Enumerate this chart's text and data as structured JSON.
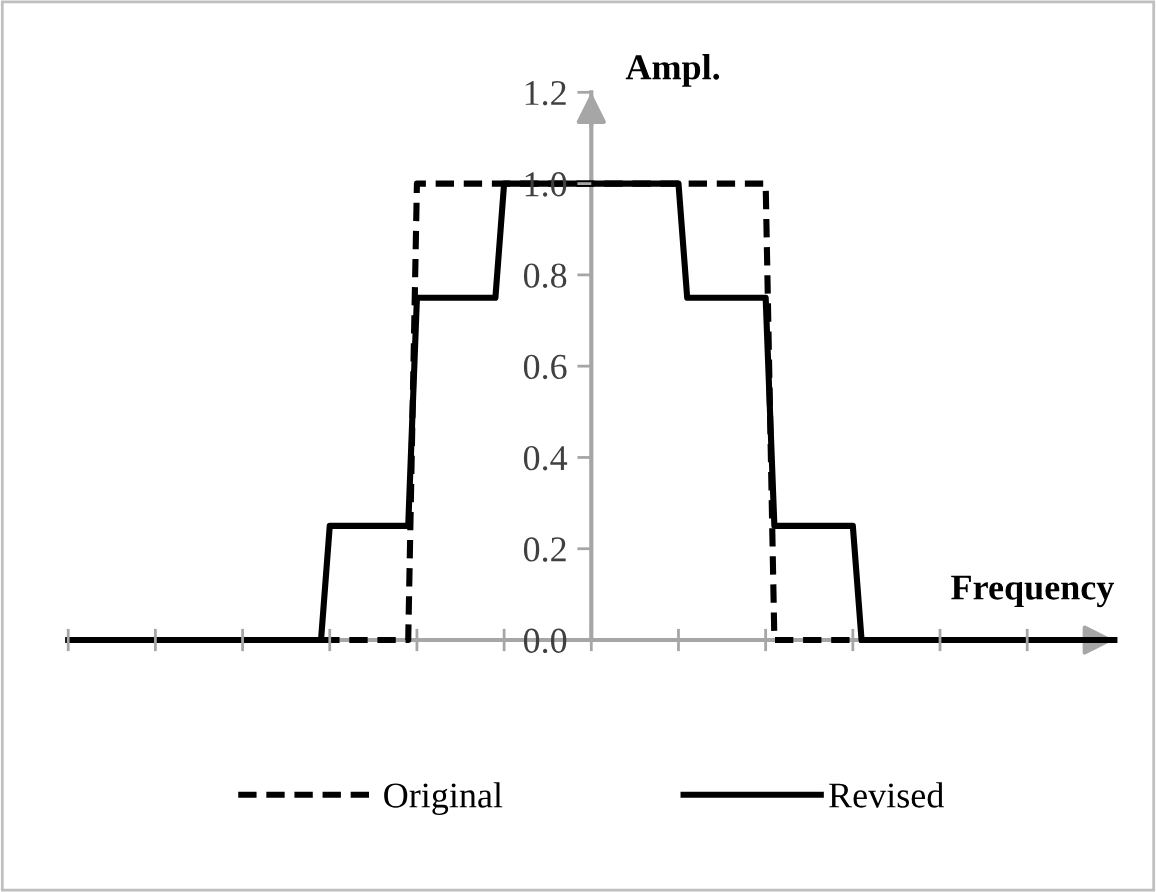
{
  "chart_data": {
    "type": "line",
    "xlabel": "Frequency",
    "ylabel": "Ampl.",
    "categories": [
      null,
      null,
      null,
      null,
      null,
      null,
      null,
      null,
      null,
      null,
      null,
      null,
      null,
      null,
      null,
      null,
      null,
      null,
      null,
      null,
      null,
      null,
      null,
      null,
      null,
      null,
      null,
      null,
      null,
      null,
      null,
      null,
      null,
      null,
      null,
      null,
      null,
      null,
      null,
      null,
      null,
      null,
      null,
      null,
      null,
      null,
      null,
      null,
      null,
      null,
      null,
      null,
      null,
      null,
      null,
      null,
      null,
      null,
      null,
      null,
      null,
      null,
      null,
      null,
      null,
      null,
      null,
      null,
      null,
      null,
      null,
      null,
      null,
      null,
      null,
      null,
      null,
      null,
      null,
      null,
      null,
      null,
      null,
      null,
      null,
      null,
      null,
      null,
      null,
      null,
      null,
      null,
      null,
      null,
      null,
      null,
      null,
      null,
      null,
      null,
      null,
      null,
      null,
      null,
      null,
      null,
      null,
      null,
      null,
      null,
      null,
      null,
      null,
      null,
      null,
      null,
      null,
      null,
      null,
      null,
      null
    ],
    "ylim": [
      0,
      1.2
    ],
    "yticks": [
      {
        "value": 0,
        "label": "0.0"
      },
      {
        "value": 0.2,
        "label": "0.2"
      },
      {
        "value": 0.4,
        "label": "0.4"
      },
      {
        "value": 0.6,
        "label": "0.6"
      },
      {
        "value": 0.8,
        "label": "0.8"
      },
      {
        "value": 1,
        "label": "1.0"
      },
      {
        "value": 1.2,
        "label": "1.2"
      }
    ],
    "tick_labels": "y",
    "grid": false,
    "legend": "bottom",
    "marker": "none",
    "series": [
      {
        "name": "Original",
        "color": "#000000",
        "line_style": "dashed",
        "values": [
          0,
          0,
          0,
          0,
          0,
          0,
          0,
          0,
          0,
          0,
          0,
          0,
          0,
          0,
          0,
          0,
          0,
          0,
          0,
          0,
          0,
          0,
          0,
          0,
          0,
          0,
          0,
          0,
          0,
          0,
          0,
          0,
          0,
          0,
          0,
          0,
          0,
          0,
          0,
          0,
          1,
          1,
          1,
          1,
          1,
          1,
          1,
          1,
          1,
          1,
          1,
          1,
          1,
          1,
          1,
          1,
          1,
          1,
          1,
          1,
          1,
          1,
          1,
          1,
          1,
          1,
          1,
          1,
          1,
          1,
          1,
          1,
          1,
          1,
          1,
          1,
          1,
          1,
          1,
          1,
          1,
          0,
          0,
          0,
          0,
          0,
          0,
          0,
          0,
          0,
          0,
          0,
          0,
          0,
          0,
          0,
          0,
          0,
          0,
          0,
          0,
          0,
          0,
          0,
          0,
          0,
          0,
          0,
          0,
          0,
          0,
          0,
          0,
          0,
          0,
          0,
          0,
          0,
          0,
          0,
          0
        ]
      },
      {
        "name": "Revised",
        "color": "#000000",
        "line_style": "solid",
        "values": [
          0,
          0,
          0,
          0,
          0,
          0,
          0,
          0,
          0,
          0,
          0,
          0,
          0,
          0,
          0,
          0,
          0,
          0,
          0,
          0,
          0,
          0,
          0,
          0,
          0,
          0,
          0,
          0,
          0,
          0,
          0.25,
          0.25,
          0.25,
          0.25,
          0.25,
          0.25,
          0.25,
          0.25,
          0.25,
          0.25,
          0.75,
          0.75,
          0.75,
          0.75,
          0.75,
          0.75,
          0.75,
          0.75,
          0.75,
          0.75,
          1,
          1,
          1,
          1,
          1,
          1,
          1,
          1,
          1,
          1,
          1,
          1,
          1,
          1,
          1,
          1,
          1,
          1,
          1,
          1,
          1,
          0.75,
          0.75,
          0.75,
          0.75,
          0.75,
          0.75,
          0.75,
          0.75,
          0.75,
          0.75,
          0.25,
          0.25,
          0.25,
          0.25,
          0.25,
          0.25,
          0.25,
          0.25,
          0.25,
          0.25,
          0,
          0,
          0,
          0,
          0,
          0,
          0,
          0,
          0,
          0,
          0,
          0,
          0,
          0,
          0,
          0,
          0,
          0,
          0,
          0,
          0,
          0,
          0,
          0,
          0,
          0,
          0,
          0,
          0,
          0
        ]
      }
    ]
  }
}
